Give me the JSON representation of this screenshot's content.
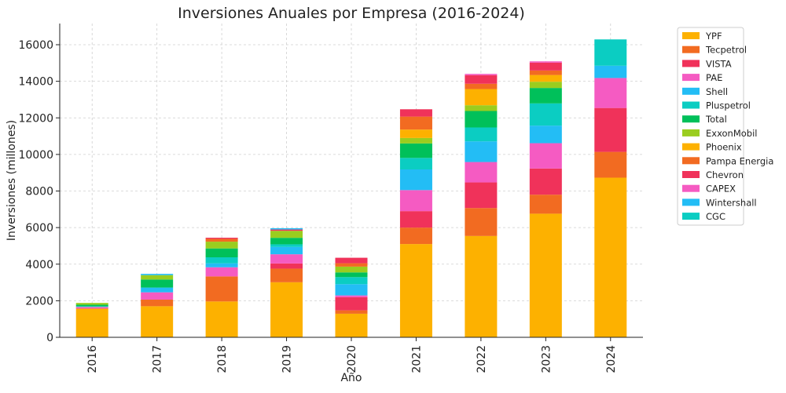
{
  "chart_data": {
    "type": "bar",
    "stacked": true,
    "title": "Inversiones Anuales por Empresa (2016-2024)",
    "xlabel": "Año",
    "ylabel": "Inversiones (millones)",
    "ylim": [
      0,
      17000
    ],
    "yticks": [
      0,
      2000,
      4000,
      6000,
      8000,
      10000,
      12000,
      14000,
      16000
    ],
    "grid": true,
    "legend_position": "outside-right",
    "categories": [
      "2016",
      "2017",
      "2018",
      "2019",
      "2020",
      "2021",
      "2022",
      "2023",
      "2024"
    ],
    "series": [
      {
        "name": "YPF",
        "color": "#FDB100",
        "values": [
          1550,
          1700,
          1960,
          3010,
          1290,
          5100,
          5540,
          6760,
          8730
        ]
      },
      {
        "name": "Tecpetrol",
        "color": "#F26B21",
        "values": [
          30,
          360,
          1370,
          745,
          185,
          900,
          1530,
          1040,
          1410
        ]
      },
      {
        "name": "VISTA",
        "color": "#F0325A",
        "values": [
          20,
          0,
          0,
          285,
          715,
          900,
          1400,
          1430,
          2400
        ]
      },
      {
        "name": "PAE",
        "color": "#F55BC2",
        "values": [
          60,
          400,
          500,
          500,
          100,
          1150,
          1115,
          1385,
          1640
        ]
      },
      {
        "name": "Shell",
        "color": "#23BDF5",
        "values": [
          0,
          260,
          215,
          400,
          615,
          1130,
          1130,
          960,
          670
        ]
      },
      {
        "name": "Pluspetrol",
        "color": "#0BCDC2",
        "values": [
          40,
          0,
          330,
          145,
          385,
          630,
          760,
          1215,
          1440
        ]
      },
      {
        "name": "Total",
        "color": "#00C05A",
        "values": [
          80,
          440,
          485,
          355,
          260,
          790,
          900,
          845,
          0
        ]
      },
      {
        "name": "ExxonMobil",
        "color": "#9ACD1F",
        "values": [
          100,
          240,
          370,
          385,
          315,
          300,
          315,
          340,
          0
        ]
      },
      {
        "name": "Phoenix",
        "color": "#FDB100",
        "values": [
          0,
          0,
          0,
          0,
          0,
          460,
          885,
          370,
          0
        ]
      },
      {
        "name": "Pampa Energia",
        "color": "#F26B21",
        "values": [
          0,
          0,
          155,
          0,
          185,
          710,
          290,
          245,
          0
        ]
      },
      {
        "name": "Chevron",
        "color": "#F0325A",
        "values": [
          0,
          0,
          60,
          70,
          300,
          400,
          470,
          430,
          0
        ]
      },
      {
        "name": "CAPEX",
        "color": "#F55BC2",
        "values": [
          0,
          0,
          0,
          0,
          0,
          0,
          70,
          70,
          0
        ]
      },
      {
        "name": "Wintershall",
        "color": "#23BDF5",
        "values": [
          0,
          70,
          0,
          70,
          0,
          0,
          0,
          0,
          0
        ]
      },
      {
        "name": "CGC",
        "color": "#0BCDC2",
        "values": [
          0,
          0,
          0,
          0,
          0,
          0,
          0,
          0,
          0
        ]
      }
    ]
  }
}
